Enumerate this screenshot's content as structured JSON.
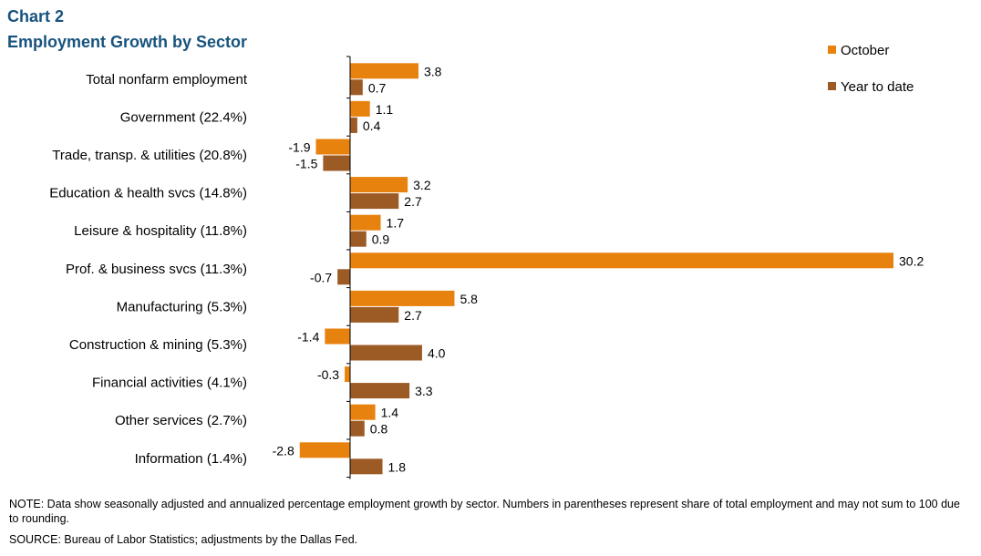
{
  "header": {
    "chart_number": "Chart 2",
    "title": "Employment  Growth by Sector"
  },
  "footer": {
    "note": "NOTE:  Data show seasonally adjusted and annualized percentage employment growth by sector. Numbers in parentheses represent share of total employment and may not sum to 100 due to rounding.",
    "source": "SOURCE:  Bureau of Labor Statistics; adjustments by the Dallas Fed."
  },
  "colors": {
    "october": "#e8820e",
    "ytd": "#9c5a24",
    "title": "#17537e"
  },
  "chart_data": {
    "type": "bar",
    "orientation": "horizontal",
    "categories": [
      "Total nonfarm employment",
      "Government (22.4%)",
      "Trade, transp. & utilities (20.8%)",
      "Education & health svcs (14.8%)",
      "Leisure & hospitality (11.8%)",
      "Prof. & business svcs (11.3%)",
      "Manufacturing (5.3%)",
      "Construction & mining (5.3%)",
      "Financial activities (4.1%)",
      "Other services (2.7%)",
      "Information (1.4%)"
    ],
    "series": [
      {
        "name": "October",
        "values": [
          3.8,
          1.1,
          -1.9,
          3.2,
          1.7,
          30.2,
          5.8,
          -1.4,
          -0.3,
          1.4,
          -2.8
        ]
      },
      {
        "name": "Year to date",
        "values": [
          0.7,
          0.4,
          -1.5,
          2.7,
          0.9,
          -0.7,
          2.7,
          4.0,
          3.3,
          0.8,
          1.8
        ]
      }
    ],
    "data_labels": [
      [
        "3.8",
        "1.1",
        "-1.9",
        "3.2",
        "1.7",
        "30.2",
        "5.8",
        "-1.4",
        "-0.3",
        "1.4",
        "-2.8"
      ],
      [
        "0.7",
        "0.4",
        "-1.5",
        "2.7",
        "0.9",
        "-0.7",
        "2.7",
        "4.0",
        "3.3",
        "0.8",
        "1.8"
      ]
    ],
    "xlim": [
      -3,
      30.2
    ],
    "grid": false,
    "legend": "top-right",
    "title": "Employment  Growth by Sector"
  }
}
